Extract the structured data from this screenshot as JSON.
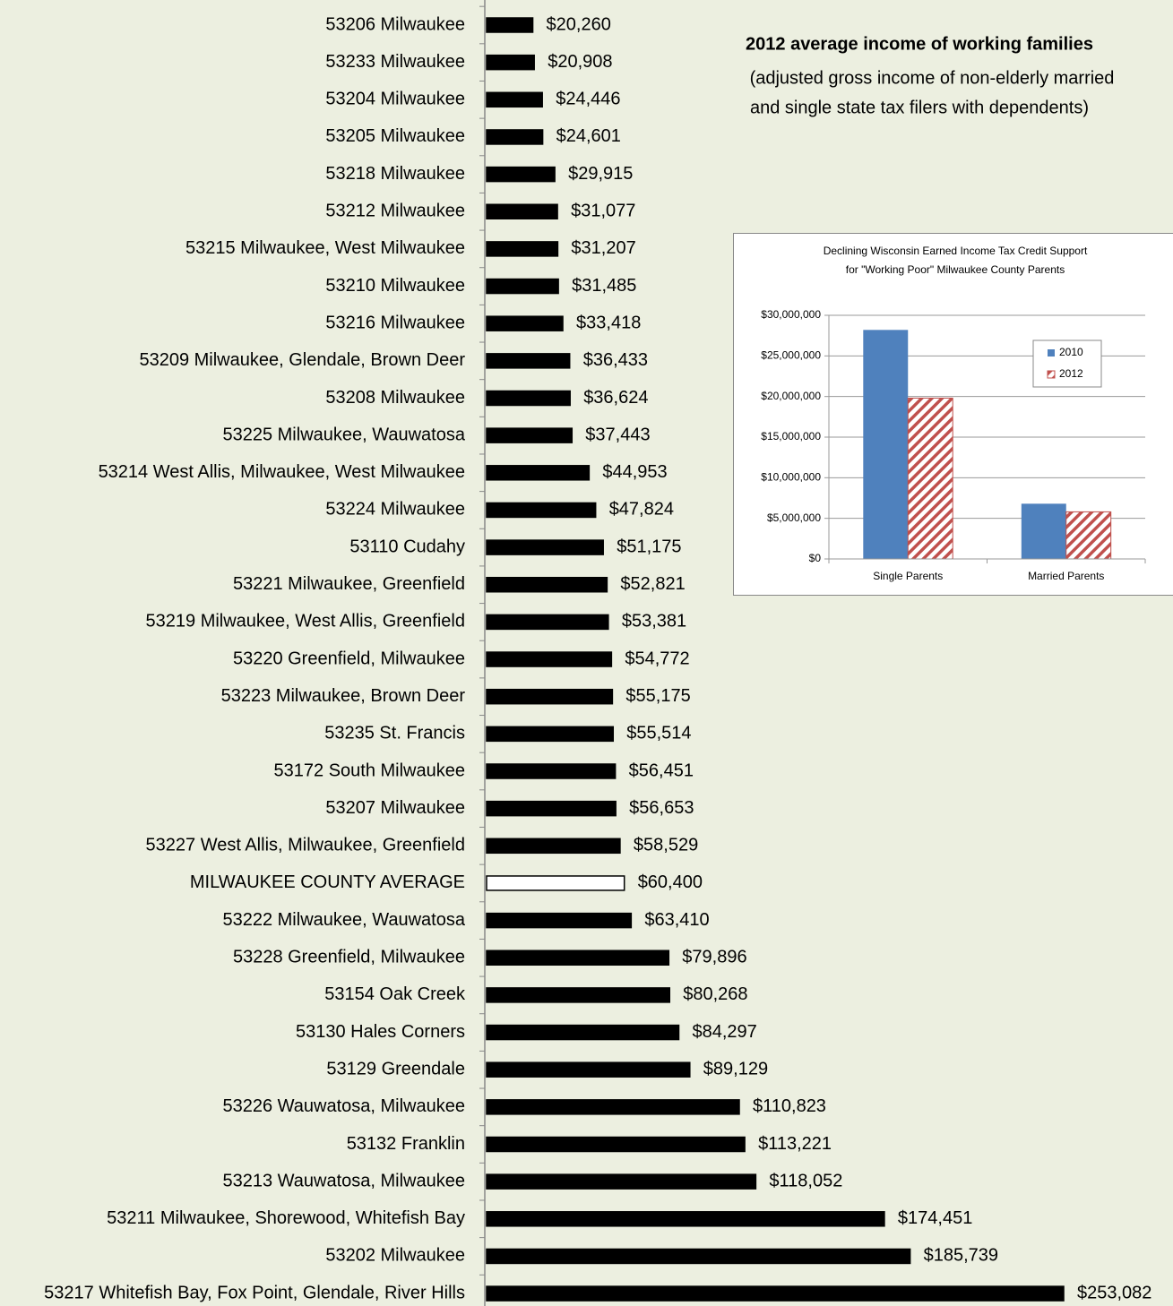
{
  "chart_data": [
    {
      "type": "bar",
      "orientation": "horizontal",
      "title": "2012 average income of working families",
      "subtitle": [
        "(adjusted gross income of non-elderly married",
        "and single state tax filers with dependents)"
      ],
      "categories": [
        "53206 Milwaukee",
        "53233 Milwaukee",
        "53204 Milwaukee",
        "53205 Milwaukee",
        "53218 Milwaukee",
        "53212 Milwaukee",
        "53215 Milwaukee, West Milwaukee",
        "53210 Milwaukee",
        "53216 Milwaukee",
        "53209 Milwaukee, Glendale, Brown Deer",
        "53208 Milwaukee",
        "53225 Milwaukee, Wauwatosa",
        "53214 West Allis, Milwaukee, West Milwaukee",
        "53224 Milwaukee",
        "53110 Cudahy",
        "53221 Milwaukee, Greenfield",
        "53219 Milwaukee, West Allis, Greenfield",
        "53220 Greenfield, Milwaukee",
        "53223 Milwaukee, Brown Deer",
        "53235 St. Francis",
        "53172 South Milwaukee",
        "53207 Milwaukee",
        "53227 West Allis, Milwaukee, Greenfield",
        "MILWAUKEE COUNTY AVERAGE",
        "53222 Milwaukee, Wauwatosa",
        "53228 Greenfield, Milwaukee",
        "53154 Oak Creek",
        "53130 Hales Corners",
        "53129 Greendale",
        "53226 Wauwatosa, Milwaukee",
        "53132 Franklin",
        "53213 Wauwatosa, Milwaukee",
        "53211 Milwaukee, Shorewood, Whitefish Bay",
        "53202 Milwaukee",
        "53217 Whitefish Bay, Fox Point, Glendale, River Hills"
      ],
      "values": [
        20260,
        20908,
        24446,
        24601,
        29915,
        31077,
        31207,
        31485,
        33418,
        36433,
        36624,
        37443,
        44953,
        47824,
        51175,
        52821,
        53381,
        54772,
        55175,
        55514,
        56451,
        56653,
        58529,
        60400,
        63410,
        79896,
        80268,
        84297,
        89129,
        110823,
        113221,
        118052,
        174451,
        185739,
        253082
      ],
      "value_labels": [
        "$20,260",
        "$20,908",
        "$24,446",
        "$24,601",
        "$29,915",
        "$31,077",
        "$31,207",
        "$31,485",
        "$33,418",
        "$36,433",
        "$36,624",
        "$37,443",
        "$44,953",
        "$47,824",
        "$51,175",
        "$52,821",
        "$53,381",
        "$54,772",
        "$55,175",
        "$55,514",
        "$56,451",
        "$56,653",
        "$58,529",
        "$60,400",
        "$63,410",
        "$79,896",
        "$80,268",
        "$84,297",
        "$89,129",
        "$110,823",
        "$113,221",
        "$118,052",
        "$174,451",
        "$185,739",
        "$253,082"
      ],
      "colors": [
        "#000000",
        "#000000",
        "#000000",
        "#000000",
        "#000000",
        "#000000",
        "#000000",
        "#000000",
        "#000000",
        "#000000",
        "#000000",
        "#000000",
        "#000000",
        "#000000",
        "#000000",
        "#000000",
        "#000000",
        "#000000",
        "#000000",
        "#000000",
        "#000000",
        "#000000",
        "#000000",
        "#ffffff",
        "#000000",
        "#000000",
        "#000000",
        "#000000",
        "#000000",
        "#000000",
        "#000000",
        "#000000",
        "#000000",
        "#000000",
        "#000000"
      ]
    },
    {
      "type": "bar",
      "title": [
        "Declining Wisconsin Earned Income Tax Credit Support",
        "for \"Working Poor\" Milwaukee County Parents"
      ],
      "categories": [
        "Single Parents",
        "Married Parents"
      ],
      "series": [
        {
          "name": "2010",
          "color": "#4f81bd",
          "values": [
            28200000,
            6800000
          ]
        },
        {
          "name": "2012",
          "color": "#c0504d",
          "hatch": true,
          "values": [
            19800000,
            5800000
          ]
        }
      ],
      "ylim": [
        0,
        30000000
      ],
      "yticks": [
        {
          "value": 0,
          "label": "$0"
        },
        {
          "value": 5000000,
          "label": "$5,000,000"
        },
        {
          "value": 10000000,
          "label": "$10,000,000"
        },
        {
          "value": 15000000,
          "label": "$15,000,000"
        },
        {
          "value": 20000000,
          "label": "$20,000,000"
        },
        {
          "value": 25000000,
          "label": "$25,000,000"
        },
        {
          "value": 30000000,
          "label": "$30,000,000"
        }
      ],
      "grid": true,
      "legend": "upper right"
    }
  ]
}
